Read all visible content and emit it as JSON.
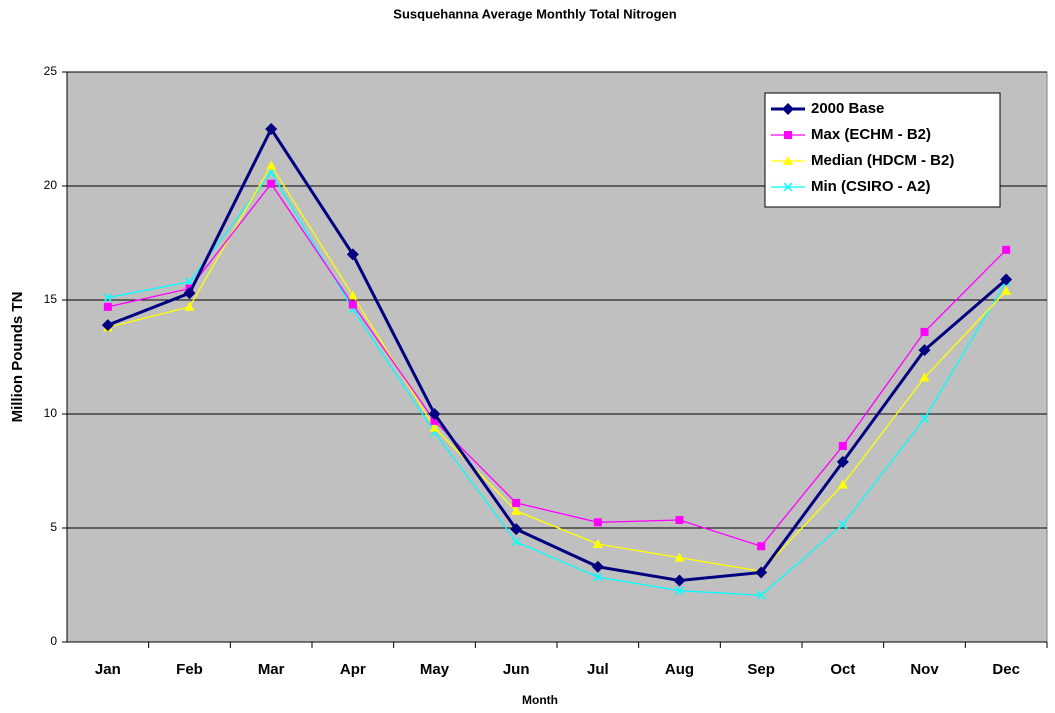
{
  "chart_data": {
    "type": "line",
    "title": "Susquehanna Average Monthly Total Nitrogen",
    "x_label": "Month",
    "y_label": "Million Pounds TN",
    "categories": [
      "Jan",
      "Feb",
      "Mar",
      "Apr",
      "May",
      "Jun",
      "Jul",
      "Aug",
      "Sep",
      "Oct",
      "Nov",
      "Dec"
    ],
    "series": [
      {
        "name": "2000 Base",
        "color": "#000080",
        "marker": "diamond",
        "values": [
          13.9,
          15.3,
          22.5,
          17.0,
          10.0,
          4.95,
          3.3,
          2.7,
          3.05,
          7.9,
          12.8,
          15.9
        ]
      },
      {
        "name": "Max (ECHM - B2)",
        "color": "#ff00ff",
        "marker": "square",
        "values": [
          14.7,
          15.5,
          20.1,
          14.8,
          9.7,
          6.1,
          5.25,
          5.35,
          4.2,
          8.6,
          13.6,
          17.2
        ]
      },
      {
        "name": "Median (HDCM - B2)",
        "color": "#ffff00",
        "marker": "triangle",
        "values": [
          13.8,
          14.7,
          20.9,
          15.2,
          9.4,
          5.75,
          4.3,
          3.7,
          3.1,
          6.9,
          11.6,
          15.4
        ]
      },
      {
        "name": "Min (CSIRO - A2)",
        "color": "#00ffff",
        "marker": "x",
        "values": [
          15.1,
          15.8,
          20.6,
          14.6,
          9.2,
          4.4,
          2.85,
          2.25,
          2.05,
          5.15,
          9.8,
          15.8
        ]
      }
    ],
    "ylim": [
      0,
      25
    ],
    "yticks": [
      0,
      5,
      10,
      15,
      20,
      25
    ],
    "grid": true,
    "legend": "upper right",
    "plot_background": "#c0c0c0"
  }
}
